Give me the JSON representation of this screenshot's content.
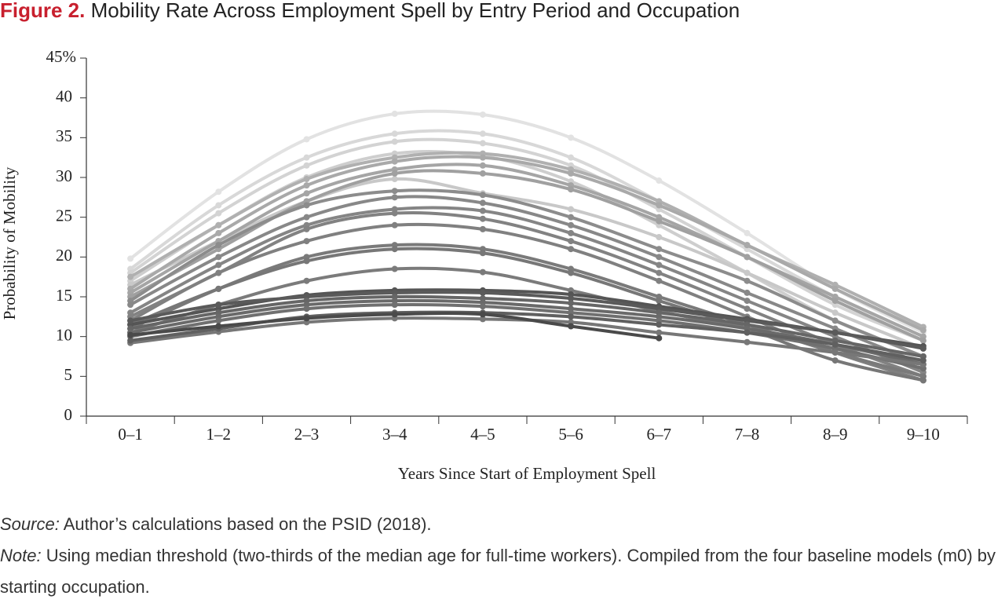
{
  "chart_data": {
    "type": "line",
    "title_label": "Figure 2.",
    "title": "Mobility Rate Across Employment Spell by Entry Period and Occupation",
    "x_label": "Years Since Start of Employment Spell",
    "y_label": "Probability of Mobility",
    "source_label": "Source:",
    "source": "Author’s calculations based on the PSID (2018).",
    "note_label": "Note:",
    "note": "Using median threshold (two-thirds of the median age for full-time workers). Compiled from the four baseline models (m0) by starting occupation.",
    "categories": [
      "0–1",
      "1–2",
      "2–3",
      "3–4",
      "4–5",
      "5–6",
      "6–7",
      "7–8",
      "8–9",
      "9–10"
    ],
    "ylim": [
      0,
      45
    ],
    "yticks": [
      0,
      5,
      10,
      15,
      20,
      25,
      30,
      35,
      40,
      {
        "value": 45,
        "label": "45%"
      }
    ],
    "series": [
      {
        "color": "#e2e2e2",
        "values": [
          19.8,
          28.2,
          34.8,
          38,
          37.9,
          35,
          29.6,
          23,
          16,
          10.5
        ]
      },
      {
        "color": "#d8d8d8",
        "values": [
          18.5,
          26.5,
          32.5,
          35.5,
          35.5,
          32.5,
          27,
          21,
          15,
          10
        ]
      },
      {
        "color": "#d3d3d3",
        "values": [
          18,
          25.5,
          31.5,
          34.5,
          34.3,
          31.5,
          26,
          20,
          14,
          9.5
        ]
      },
      {
        "color": "#cecece",
        "values": [
          17,
          24,
          30,
          33,
          32.7,
          29.5,
          24,
          18,
          12,
          7.5
        ]
      },
      {
        "color": "#c8c8c8",
        "values": [
          16.5,
          22,
          27,
          29.8,
          28,
          26,
          22.5,
          18,
          13,
          8.5
        ]
      },
      {
        "color": "#b0b0b0",
        "values": [
          17.5,
          24,
          29.8,
          32.5,
          33,
          31,
          27,
          21.5,
          16.5,
          11.2
        ]
      },
      {
        "color": "#a9a9a9",
        "values": [
          16,
          23,
          29,
          32,
          32.5,
          30.5,
          26.5,
          21.5,
          16,
          10.8
        ]
      },
      {
        "color": "#a5a5a5",
        "values": [
          15.5,
          22,
          28,
          31,
          31.5,
          29,
          25,
          20,
          15,
          10
        ]
      },
      {
        "color": "#a0a0a0",
        "values": [
          15,
          21,
          27,
          30.5,
          30.5,
          28.5,
          24.5,
          20,
          14.5,
          9.5
        ]
      },
      {
        "color": "#8c8c8c",
        "values": [
          14.5,
          21.5,
          26.5,
          28.3,
          27.8,
          25,
          21,
          17,
          12,
          7.5
        ]
      },
      {
        "color": "#888888",
        "values": [
          14,
          20,
          25,
          27.5,
          26.8,
          24,
          20,
          15.5,
          11,
          6.5
        ]
      },
      {
        "color": "#858585",
        "values": [
          13,
          19,
          24,
          26,
          25.8,
          23,
          19,
          14.5,
          10,
          5.5
        ]
      },
      {
        "color": "#828282",
        "values": [
          12.5,
          18,
          23.5,
          25.5,
          24.8,
          22,
          18,
          13.5,
          9,
          5
        ]
      },
      {
        "color": "#808080",
        "values": [
          12,
          18,
          22,
          24,
          23.5,
          21,
          17,
          12.5,
          8,
          4.5
        ]
      },
      {
        "color": "#7a7a7a",
        "values": [
          11,
          16,
          20,
          21.5,
          21,
          18.5,
          15,
          11.5,
          8,
          5
        ]
      },
      {
        "color": "#777777",
        "values": [
          11.5,
          16,
          19.5,
          21,
          20.5,
          18,
          14.5,
          11,
          7,
          4.5
        ]
      },
      {
        "color": "#7b7b7b",
        "values": [
          10.5,
          14,
          17,
          18.5,
          18.1,
          15.8,
          13.2,
          11,
          8.5,
          6
        ]
      },
      {
        "color": "#555555",
        "values": [
          11.5,
          13.5,
          15.2,
          15.8,
          15.8,
          15.3,
          13.8,
          12.2,
          10.5,
          8.8
        ]
      },
      {
        "color": "#5a5a5a",
        "values": [
          12,
          14,
          15,
          15.5,
          15.5,
          14.8,
          13.5,
          12,
          10.5,
          8.5
        ]
      },
      {
        "color": "#666666",
        "values": [
          11,
          13,
          14.5,
          15,
          14.8,
          14.2,
          13,
          11.5,
          9.5,
          7.5
        ]
      },
      {
        "color": "#6a6a6a",
        "values": [
          10.5,
          12.5,
          14,
          14.5,
          14.3,
          13.5,
          12.5,
          11,
          9,
          6.5
        ]
      },
      {
        "color": "#707070",
        "values": [
          10,
          12,
          13.5,
          14,
          13.8,
          13,
          12,
          10.5,
          8.5,
          6
        ]
      },
      {
        "color": "#777777",
        "values": [
          9.2,
          10.6,
          11.8,
          12.3,
          12.2,
          11.8,
          10.5,
          9.3,
          8,
          6.5
        ]
      },
      {
        "color": "#606060",
        "values": [
          9.5,
          11,
          12.5,
          13,
          13,
          12.5,
          11.5,
          10.5,
          9,
          7
        ]
      },
      {
        "color": "#4a4a4a",
        "values": [
          10.2,
          11.3,
          12.3,
          12.8,
          12.8,
          11.3,
          9.8,
          null,
          null,
          null
        ]
      }
    ]
  }
}
